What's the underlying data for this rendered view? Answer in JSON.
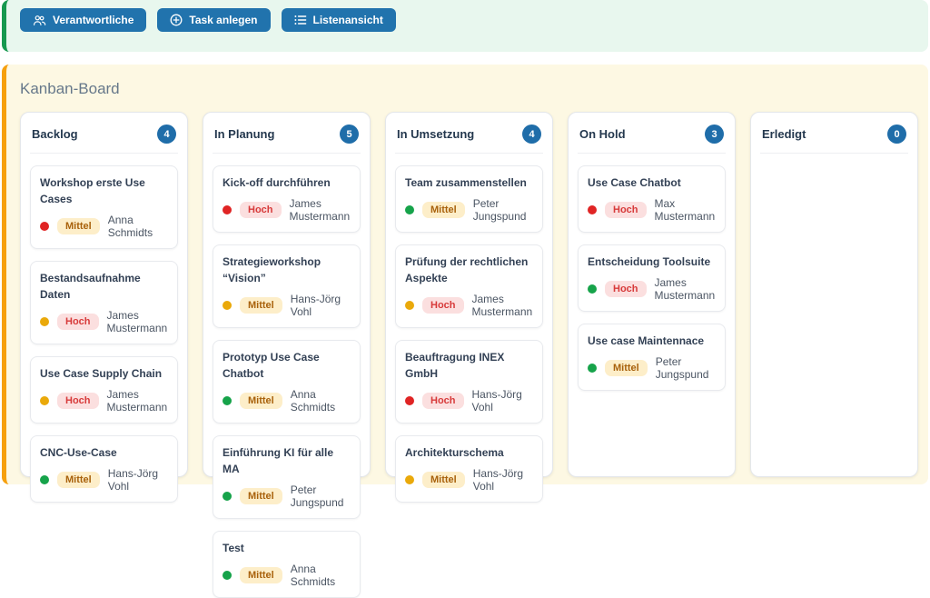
{
  "toolbar": {
    "buttons": [
      {
        "label": "Verantwortliche",
        "icon": "users-icon"
      },
      {
        "label": "Task anlegen",
        "icon": "plus-circle-icon"
      },
      {
        "label": "Listenansicht",
        "icon": "list-icon"
      }
    ]
  },
  "board": {
    "title": "Kanban-Board",
    "columns": [
      {
        "name": "Backlog",
        "count": 4,
        "cards": [
          {
            "title": "Workshop erste Use Cases",
            "dot": "red",
            "priority": "Mittel",
            "assignee": "Anna Schmidts"
          },
          {
            "title": "Bestandsaufnahme Daten",
            "dot": "yellow",
            "priority": "Hoch",
            "assignee": "James Mustermann"
          },
          {
            "title": "Use Case Supply Chain",
            "dot": "yellow",
            "priority": "Hoch",
            "assignee": "James Mustermann"
          },
          {
            "title": "CNC-Use-Case",
            "dot": "green",
            "priority": "Mittel",
            "assignee": "Hans-Jörg Vohl"
          }
        ]
      },
      {
        "name": "In Planung",
        "count": 5,
        "cards": [
          {
            "title": "Kick-off durchführen",
            "dot": "red",
            "priority": "Hoch",
            "assignee": "James Mustermann"
          },
          {
            "title": "Strategieworkshop “Vision”",
            "dot": "yellow",
            "priority": "Mittel",
            "assignee": "Hans-Jörg Vohl"
          },
          {
            "title": "Prototyp Use Case Chatbot",
            "dot": "green",
            "priority": "Mittel",
            "assignee": "Anna Schmidts"
          },
          {
            "title": "Einführung KI für alle MA",
            "dot": "green",
            "priority": "Mittel",
            "assignee": "Peter Jungspund"
          },
          {
            "title": "Test",
            "dot": "green",
            "priority": "Mittel",
            "assignee": "Anna Schmidts"
          }
        ]
      },
      {
        "name": "In Umsetzung",
        "count": 4,
        "cards": [
          {
            "title": "Team zusammenstellen",
            "dot": "green",
            "priority": "Mittel",
            "assignee": "Peter Jungspund"
          },
          {
            "title": "Prüfung der rechtlichen Aspekte",
            "dot": "yellow",
            "priority": "Hoch",
            "assignee": "James Mustermann"
          },
          {
            "title": "Beauftragung INEX GmbH",
            "dot": "red",
            "priority": "Hoch",
            "assignee": "Hans-Jörg Vohl"
          },
          {
            "title": "Architekturschema",
            "dot": "yellow",
            "priority": "Mittel",
            "assignee": "Hans-Jörg Vohl"
          }
        ]
      },
      {
        "name": "On Hold",
        "count": 3,
        "cards": [
          {
            "title": "Use Case Chatbot",
            "dot": "red",
            "priority": "Hoch",
            "assignee": "Max Mustermann"
          },
          {
            "title": "Entscheidung Toolsuite",
            "dot": "green",
            "priority": "Hoch",
            "assignee": "James Mustermann"
          },
          {
            "title": "Use case Maintennace",
            "dot": "green",
            "priority": "Mittel",
            "assignee": "Peter Jungspund"
          }
        ]
      },
      {
        "name": "Erledigt",
        "count": 0,
        "cards": []
      }
    ]
  },
  "colors": {
    "accent_blue": "#2173ad",
    "count_badge_blue": "#1f6da9",
    "toolbar_bg": "#e8f7ee",
    "toolbar_accent_border": "#17984f",
    "board_bg": "#fdf8e3",
    "board_accent_border": "#f6a00e",
    "dot_red": "#e02424",
    "dot_yellow": "#eaa90a",
    "dot_green": "#16a34a",
    "badge_mittel_bg": "#fdeec9",
    "badge_mittel_text": "#a8610b",
    "badge_hoch_bg": "#fbdfdf",
    "badge_hoch_text": "#d73a3a"
  }
}
